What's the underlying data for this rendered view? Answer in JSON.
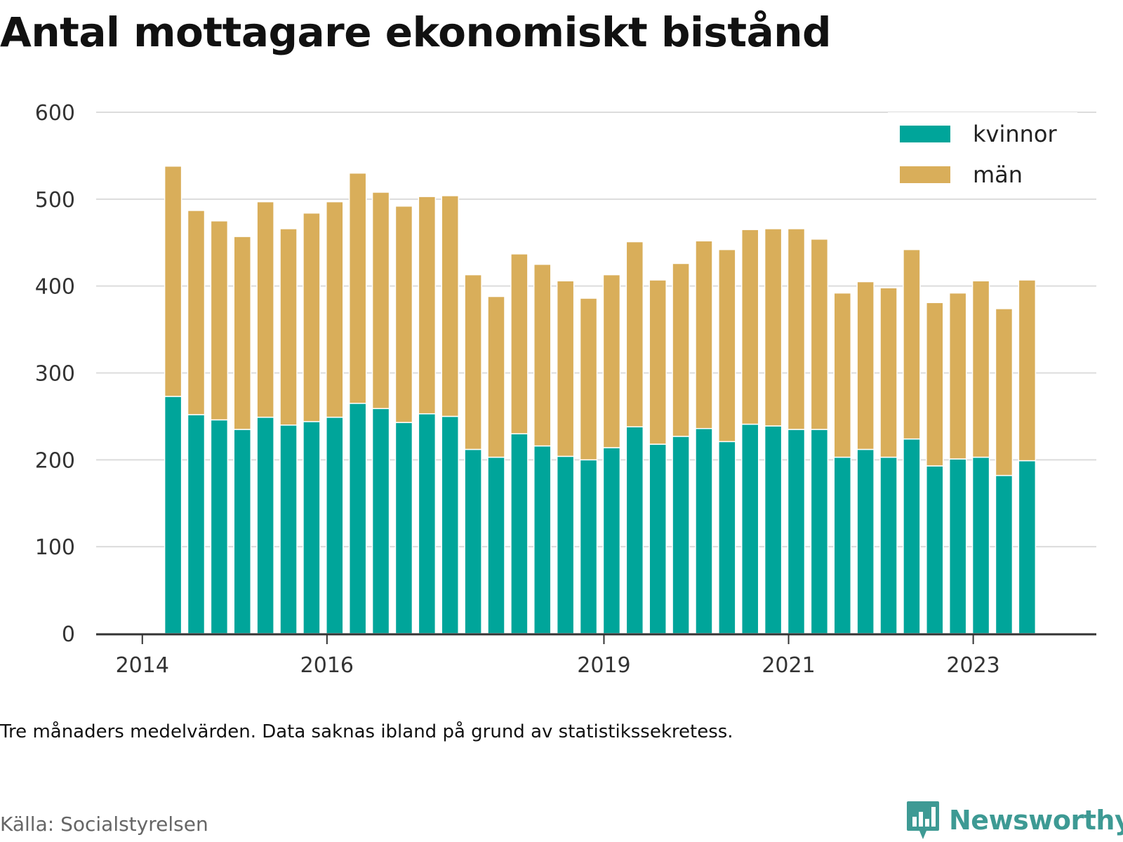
{
  "title": "Antal mottagare ekonomiskt bistånd",
  "note": "Tre månaders medelvärden. Data saknas ibland på grund av statistikssekretess.",
  "source": "Källa: Socialstyrelsen",
  "logo": {
    "text": "Newsworthy",
    "icon": "newsworthy-logo-icon"
  },
  "chart_data": {
    "type": "bar",
    "stacked": true,
    "ylim": [
      0,
      600
    ],
    "yticks": [
      0,
      100,
      200,
      300,
      400,
      500,
      600
    ],
    "xlim": [
      "2013-07",
      "2024-05"
    ],
    "xticks": [
      {
        "label": "2014",
        "value": "2014-01"
      },
      {
        "label": "2016",
        "value": "2016-01"
      },
      {
        "label": "2019",
        "value": "2019-01"
      },
      {
        "label": "2021",
        "value": "2021-01"
      },
      {
        "label": "2023",
        "value": "2023-01"
      }
    ],
    "grid": true,
    "legend_position": "top-right",
    "colors": {
      "kvinnor": "#00a59a",
      "män": "#d9ae5a"
    },
    "x": [
      "2014-05",
      "2014-08",
      "2014-11",
      "2015-02",
      "2015-05",
      "2015-08",
      "2015-11",
      "2016-02",
      "2016-05",
      "2016-08",
      "2016-11",
      "2017-02",
      "2017-05",
      "2017-08",
      "2017-11",
      "2018-02",
      "2018-05",
      "2018-08",
      "2018-11",
      "2019-02",
      "2019-05",
      "2019-08",
      "2019-11",
      "2020-02",
      "2020-05",
      "2020-08",
      "2020-11",
      "2021-02",
      "2021-05",
      "2021-08",
      "2021-11",
      "2022-02",
      "2022-05",
      "2022-08",
      "2022-11",
      "2023-02",
      "2023-05",
      "2023-08"
    ],
    "series": [
      {
        "name": "kvinnor",
        "values": [
          273,
          252,
          246,
          235,
          249,
          240,
          244,
          249,
          265,
          259,
          243,
          253,
          250,
          212,
          203,
          230,
          216,
          204,
          200,
          214,
          238,
          218,
          227,
          236,
          221,
          241,
          239,
          235,
          235,
          203,
          212,
          203,
          224,
          193,
          201,
          203,
          182,
          199
        ]
      },
      {
        "name": "män",
        "values": [
          265,
          235,
          229,
          222,
          248,
          226,
          240,
          248,
          265,
          249,
          249,
          250,
          254,
          201,
          185,
          207,
          209,
          202,
          186,
          199,
          213,
          189,
          199,
          216,
          221,
          224,
          227,
          231,
          219,
          189,
          193,
          195,
          218,
          188,
          191,
          203,
          192,
          208
        ]
      }
    ]
  }
}
